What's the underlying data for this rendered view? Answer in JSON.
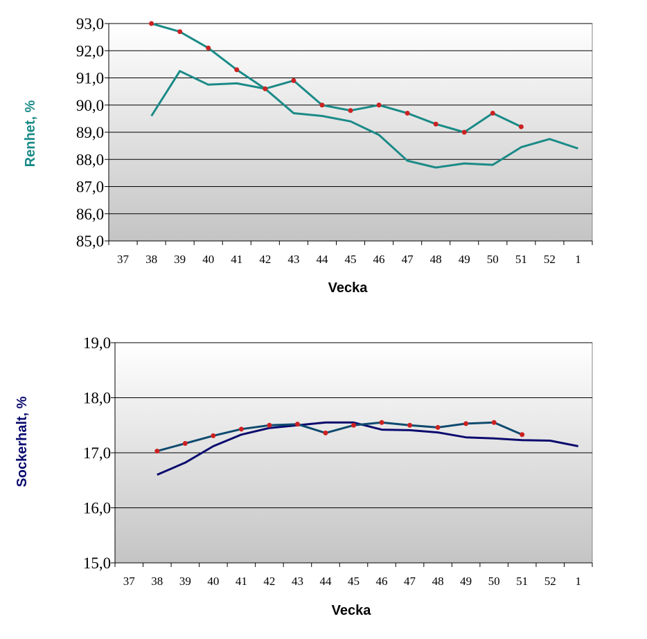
{
  "chart_data": [
    {
      "type": "line",
      "ylabel": "Renhet, %",
      "xlabel": "Vecka",
      "categories": [
        "37",
        "38",
        "39",
        "40",
        "41",
        "42",
        "43",
        "44",
        "45",
        "46",
        "47",
        "48",
        "49",
        "50",
        "51",
        "52",
        "1"
      ],
      "ylim": [
        85,
        93
      ],
      "yticks": [
        "85,0",
        "86,0",
        "87,0",
        "88,0",
        "89,0",
        "90,0",
        "91,0",
        "92,0",
        "93,0"
      ],
      "grid": true,
      "colors": {
        "line": "#1a8a87",
        "marker": "#cc2222",
        "label": "#1a8a87"
      },
      "series": [
        {
          "values": [
            null,
            89.6,
            91.25,
            90.75,
            90.8,
            90.6,
            89.7,
            89.6,
            89.4,
            88.9,
            87.95,
            87.7,
            87.85,
            87.8,
            88.45,
            88.75,
            88.4
          ],
          "markers": false
        },
        {
          "values": [
            null,
            93.0,
            92.7,
            92.1,
            91.3,
            90.6,
            90.9,
            90.0,
            89.8,
            90.0,
            89.7,
            89.3,
            89.0,
            89.7,
            89.2,
            null,
            null
          ],
          "markers": true
        }
      ]
    },
    {
      "type": "line",
      "ylabel": "Sockerhalt, %",
      "xlabel": "Vecka",
      "categories": [
        "37",
        "38",
        "39",
        "40",
        "41",
        "42",
        "43",
        "44",
        "45",
        "46",
        "47",
        "48",
        "49",
        "50",
        "51",
        "52",
        "1"
      ],
      "ylim": [
        15,
        19
      ],
      "yticks": [
        "15,0",
        "16,0",
        "17,0",
        "18,0",
        "19,0"
      ],
      "grid": true,
      "colors": {
        "line_a": "#0a0a6e",
        "line_b": "#0e4a6e",
        "marker": "#cc2222",
        "label": "#0a0a6e"
      },
      "series": [
        {
          "values": [
            null,
            16.6,
            16.82,
            17.12,
            17.33,
            17.45,
            17.5,
            17.55,
            17.55,
            17.42,
            17.41,
            17.37,
            17.28,
            17.26,
            17.23,
            17.22,
            17.12
          ],
          "markers": false
        },
        {
          "values": [
            null,
            17.03,
            17.17,
            17.31,
            17.43,
            17.5,
            17.52,
            17.36,
            17.5,
            17.55,
            17.5,
            17.46,
            17.53,
            17.55,
            17.33,
            null,
            null
          ],
          "markers": true
        }
      ]
    }
  ]
}
